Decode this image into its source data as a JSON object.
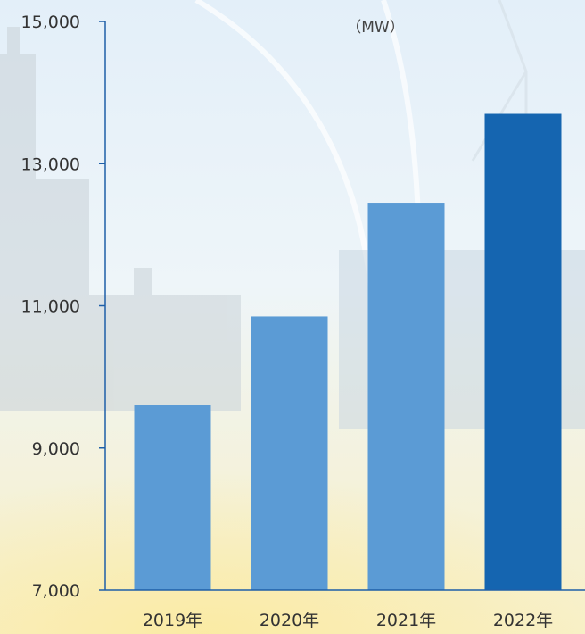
{
  "chart_data": {
    "type": "bar",
    "unit_label": "（MW）",
    "categories": [
      "2019年",
      "2020年",
      "2021年",
      "2022年"
    ],
    "values": [
      9600,
      10850,
      12450,
      13700
    ],
    "ylim": [
      7000,
      15000
    ],
    "yticks": [
      7000,
      9000,
      11000,
      13000,
      15000
    ],
    "ytick_labels": [
      "7,000",
      "9,000",
      "11,000",
      "13,000",
      "15,000"
    ],
    "colors": {
      "bar": "#5b9bd5",
      "highlight_bar": "#1565b0",
      "axis": "#1e5fa8"
    },
    "highlight_index": 3,
    "grid": false,
    "legend": "none"
  }
}
